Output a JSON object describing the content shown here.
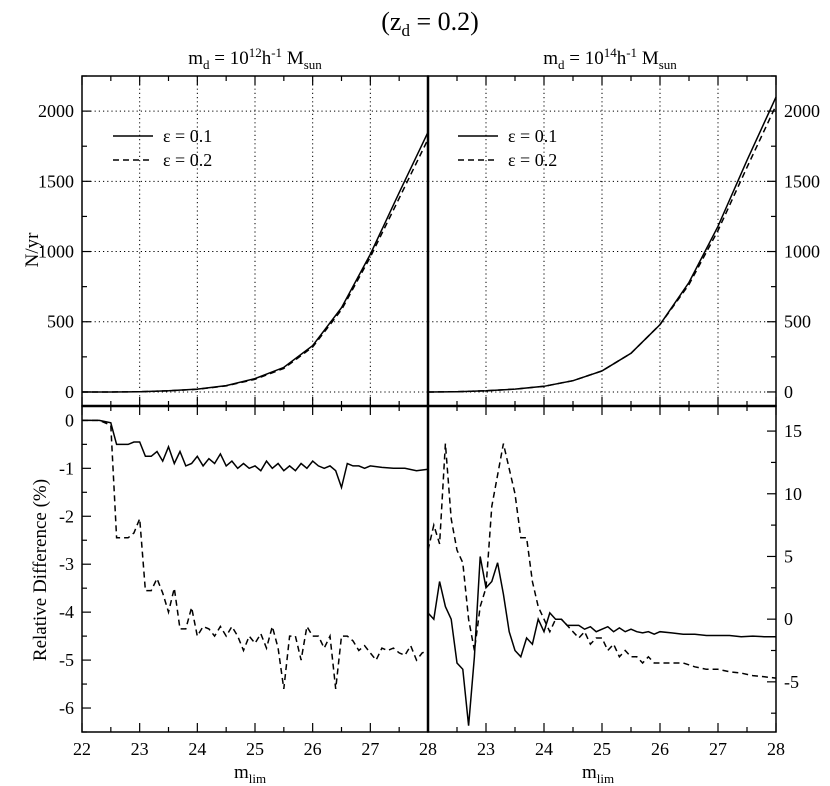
{
  "figure": {
    "title": "(z",
    "title_sub": "d",
    "title_tail": " = 0.2)",
    "legend": [
      {
        "label": "ε = 0.1",
        "style": "solid"
      },
      {
        "label": "ε = 0.2",
        "style": "dashed"
      }
    ],
    "panel_titles": [
      {
        "pre": "m",
        "sub": "d",
        "mid": " = 10",
        "sup1": "12",
        "post": "h",
        "sup2": "-1",
        "m": " M",
        "msub": "sun"
      },
      {
        "pre": "m",
        "sub": "d",
        "mid": " = 10",
        "sup1": "14",
        "post": "h",
        "sup2": "-1",
        "m": " M",
        "msub": "sun"
      }
    ],
    "xlabel": {
      "main": "m",
      "sub": "lim"
    },
    "xtick_labels_left": [
      "22",
      "23",
      "24",
      "25",
      "26",
      "27",
      "28"
    ],
    "xtick_labels_right": [
      "",
      "23",
      "24",
      "25",
      "26",
      "27",
      "28"
    ]
  },
  "chart_data": [
    {
      "type": "line",
      "panel": "top-left",
      "ylabel": "N/yr",
      "xlim": [
        22,
        28
      ],
      "ylim": [
        -100,
        2250
      ],
      "yticks": [
        0,
        500,
        1000,
        1500,
        2000
      ],
      "grid": true,
      "legend_position": "top-left",
      "series": [
        {
          "name": "ε = 0.1",
          "style": "solid",
          "x": [
            22,
            22.5,
            23,
            23.5,
            24,
            24.5,
            25,
            25.5,
            26,
            26.5,
            27,
            27.5,
            28
          ],
          "y": [
            0,
            0,
            2,
            8,
            20,
            45,
            95,
            175,
            330,
            600,
            980,
            1420,
            1850
          ]
        },
        {
          "name": "ε = 0.2",
          "style": "dashed",
          "x": [
            22,
            22.5,
            23,
            23.5,
            24,
            24.5,
            25,
            25.5,
            26,
            26.5,
            27,
            27.5,
            28
          ],
          "y": [
            0,
            0,
            2,
            8,
            19,
            43,
            90,
            168,
            320,
            585,
            960,
            1380,
            1800
          ]
        }
      ]
    },
    {
      "type": "line",
      "panel": "top-right",
      "ylabel": "",
      "xlim": [
        22,
        28
      ],
      "ylim": [
        -100,
        2250
      ],
      "yticks": [
        0,
        500,
        1000,
        1500,
        2000
      ],
      "grid": true,
      "legend_position": "top-left",
      "series": [
        {
          "name": "ε = 0.1",
          "style": "solid",
          "x": [
            22,
            22.5,
            23,
            23.5,
            24,
            24.5,
            25,
            25.5,
            26,
            26.5,
            27,
            27.5,
            28
          ],
          "y": [
            0,
            2,
            8,
            20,
            40,
            80,
            150,
            275,
            480,
            780,
            1180,
            1650,
            2100
          ]
        },
        {
          "name": "ε = 0.2",
          "style": "dashed",
          "x": [
            22,
            22.5,
            23,
            23.5,
            24,
            24.5,
            25,
            25.5,
            26,
            26.5,
            27,
            27.5,
            28
          ],
          "y": [
            0,
            2,
            8,
            20,
            40,
            80,
            150,
            275,
            480,
            765,
            1150,
            1600,
            2040
          ]
        }
      ]
    },
    {
      "type": "line",
      "panel": "bottom-left",
      "ylabel": "Relative Difference (%)",
      "xlim": [
        22,
        28
      ],
      "ylim": [
        -6.5,
        0.3
      ],
      "yticks": [
        0,
        -1,
        -2,
        -3,
        -4,
        -5,
        -6
      ],
      "grid": false,
      "series": [
        {
          "name": "ε = 0.1",
          "style": "solid",
          "x": [
            22,
            22.3,
            22.5,
            22.6,
            22.8,
            22.9,
            23,
            23.1,
            23.2,
            23.3,
            23.4,
            23.5,
            23.6,
            23.7,
            23.8,
            23.9,
            24,
            24.1,
            24.2,
            24.3,
            24.4,
            24.5,
            24.6,
            24.7,
            24.8,
            24.9,
            25,
            25.1,
            25.2,
            25.3,
            25.4,
            25.5,
            25.6,
            25.7,
            25.8,
            25.9,
            26,
            26.1,
            26.2,
            26.3,
            26.4,
            26.5,
            26.6,
            26.7,
            26.8,
            26.9,
            27,
            27.2,
            27.4,
            27.6,
            27.8,
            28
          ],
          "y": [
            0,
            0,
            -0.05,
            -0.5,
            -0.5,
            -0.45,
            -0.45,
            -0.75,
            -0.75,
            -0.65,
            -0.85,
            -0.55,
            -0.9,
            -0.65,
            -0.95,
            -0.9,
            -0.75,
            -0.95,
            -0.8,
            -0.9,
            -0.7,
            -0.95,
            -0.85,
            -1.0,
            -0.9,
            -1.0,
            -0.95,
            -1.05,
            -0.85,
            -1.0,
            -0.9,
            -1.05,
            -0.95,
            -1.05,
            -0.9,
            -1.0,
            -0.85,
            -0.95,
            -1.0,
            -0.95,
            -1.05,
            -1.4,
            -0.9,
            -0.95,
            -0.95,
            -1.0,
            -0.95,
            -0.98,
            -1.0,
            -1.0,
            -1.05,
            -1.02
          ]
        },
        {
          "name": "ε = 0.2",
          "style": "dashed",
          "x": [
            22,
            22.3,
            22.5,
            22.6,
            22.8,
            22.9,
            23,
            23.1,
            23.2,
            23.3,
            23.4,
            23.5,
            23.6,
            23.7,
            23.8,
            23.9,
            24,
            24.1,
            24.2,
            24.3,
            24.4,
            24.5,
            24.6,
            24.7,
            24.8,
            24.9,
            25,
            25.1,
            25.2,
            25.3,
            25.4,
            25.5,
            25.6,
            25.7,
            25.8,
            25.9,
            26,
            26.1,
            26.2,
            26.3,
            26.4,
            26.5,
            26.6,
            26.7,
            26.8,
            26.9,
            27,
            27.1,
            27.2,
            27.3,
            27.4,
            27.5,
            27.6,
            27.7,
            27.8,
            27.9,
            28
          ],
          "y": [
            0,
            0,
            -0.1,
            -2.45,
            -2.45,
            -2.35,
            -2.05,
            -3.55,
            -3.55,
            -3.3,
            -3.6,
            -4.0,
            -3.5,
            -4.35,
            -4.35,
            -3.9,
            -4.5,
            -4.3,
            -4.35,
            -4.5,
            -4.3,
            -4.5,
            -4.3,
            -4.5,
            -4.8,
            -4.5,
            -4.65,
            -4.45,
            -4.75,
            -4.3,
            -4.75,
            -5.6,
            -4.5,
            -4.5,
            -5.0,
            -4.3,
            -4.5,
            -4.5,
            -4.75,
            -4.5,
            -5.6,
            -4.5,
            -4.5,
            -4.6,
            -4.8,
            -4.7,
            -4.85,
            -5.0,
            -4.75,
            -4.8,
            -4.75,
            -4.85,
            -4.9,
            -4.7,
            -5.0,
            -4.85,
            -4.8
          ]
        }
      ]
    },
    {
      "type": "line",
      "panel": "bottom-right",
      "ylabel": "",
      "xlim": [
        22,
        28
      ],
      "ylim": [
        -9,
        17
      ],
      "yticks": [
        15,
        10,
        5,
        0,
        -5
      ],
      "grid": false,
      "series": [
        {
          "name": "ε = 0.1",
          "style": "solid",
          "x": [
            22,
            22.1,
            22.2,
            22.3,
            22.4,
            22.5,
            22.6,
            22.7,
            22.8,
            22.9,
            23,
            23.1,
            23.2,
            23.3,
            23.4,
            23.5,
            23.6,
            23.7,
            23.8,
            23.9,
            24,
            24.1,
            24.2,
            24.3,
            24.4,
            24.5,
            24.6,
            24.7,
            24.8,
            24.9,
            25,
            25.1,
            25.2,
            25.3,
            25.4,
            25.5,
            25.6,
            25.7,
            25.8,
            25.9,
            26,
            26.2,
            26.4,
            26.6,
            26.8,
            27,
            27.2,
            27.4,
            27.6,
            27.8,
            28
          ],
          "y": [
            0.5,
            0,
            3.0,
            1.0,
            0,
            -3.5,
            -4.0,
            -8.5,
            -3.0,
            5.0,
            2.5,
            3.0,
            4.5,
            2.0,
            -1.0,
            -2.5,
            -3.0,
            -1.5,
            -2.0,
            0,
            -1.0,
            0.5,
            0,
            0,
            -0.5,
            -0.5,
            -0.5,
            -0.8,
            -0.6,
            -1.0,
            -0.8,
            -0.6,
            -1.0,
            -0.7,
            -1.0,
            -0.8,
            -1.0,
            -1.1,
            -1.0,
            -1.2,
            -1.0,
            -1.1,
            -1.2,
            -1.2,
            -1.3,
            -1.3,
            -1.3,
            -1.4,
            -1.35,
            -1.4,
            -1.4
          ]
        },
        {
          "name": "ε = 0.2",
          "style": "dashed",
          "x": [
            22,
            22.1,
            22.2,
            22.3,
            22.4,
            22.5,
            22.6,
            22.7,
            22.8,
            22.9,
            23,
            23.1,
            23.2,
            23.3,
            23.4,
            23.5,
            23.6,
            23.7,
            23.8,
            23.9,
            24,
            24.1,
            24.2,
            24.3,
            24.4,
            24.5,
            24.6,
            24.7,
            24.8,
            24.9,
            25,
            25.1,
            25.2,
            25.3,
            25.4,
            25.5,
            25.6,
            25.7,
            25.8,
            25.9,
            26,
            26.2,
            26.4,
            26.6,
            26.8,
            27,
            27.2,
            27.4,
            27.6,
            27.8,
            28
          ],
          "y": [
            5.5,
            7.5,
            6.0,
            14.0,
            8.0,
            5.5,
            4.5,
            0,
            -2.5,
            1.0,
            2.5,
            9.0,
            11.5,
            14.0,
            12.0,
            10.0,
            6.5,
            6.5,
            3.0,
            1.0,
            0,
            -1.0,
            0,
            0,
            -0.5,
            -1.0,
            -1.5,
            -1.0,
            -2.0,
            -1.5,
            -1.5,
            -2.5,
            -2.0,
            -3.0,
            -2.5,
            -3.0,
            -3.0,
            -3.5,
            -3.0,
            -3.5,
            -3.5,
            -3.5,
            -3.5,
            -3.8,
            -4.0,
            -4.0,
            -4.2,
            -4.3,
            -4.5,
            -4.6,
            -4.7
          ]
        }
      ]
    }
  ]
}
